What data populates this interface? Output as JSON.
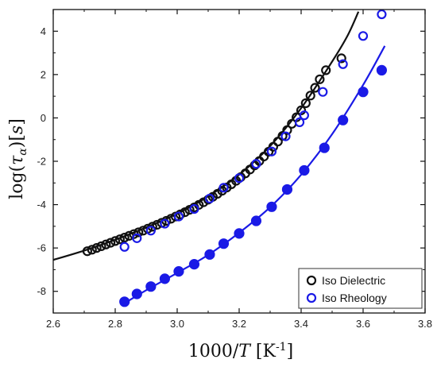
{
  "chart_data": {
    "type": "scatter",
    "xlabel": "1000/T [K⁻¹]",
    "ylabel": "log(τα)[s]",
    "xlim": [
      2.6,
      3.8
    ],
    "ylim": [
      -9,
      5
    ],
    "x_ticks": [
      "2.6",
      "2.8",
      "3.0",
      "3.2",
      "3.4",
      "3.6",
      "3.8"
    ],
    "y_ticks": [
      "-8",
      "-6",
      "-4",
      "-2",
      "0",
      "2",
      "4"
    ],
    "legend": {
      "position": "bottom-right"
    },
    "colors": {
      "black": "#111111",
      "blue": "#1a1ae6"
    },
    "series": [
      {
        "name": "Iso Dielectric",
        "marker": "open-circle",
        "color": "#111111",
        "points": [
          [
            2.71,
            -6.15
          ],
          [
            2.725,
            -6.08
          ],
          [
            2.74,
            -6.0
          ],
          [
            2.755,
            -5.92
          ],
          [
            2.77,
            -5.84
          ],
          [
            2.785,
            -5.76
          ],
          [
            2.8,
            -5.68
          ],
          [
            2.815,
            -5.6
          ],
          [
            2.83,
            -5.52
          ],
          [
            2.845,
            -5.44
          ],
          [
            2.86,
            -5.36
          ],
          [
            2.875,
            -5.28
          ],
          [
            2.89,
            -5.2
          ],
          [
            2.905,
            -5.11
          ],
          [
            2.92,
            -5.02
          ],
          [
            2.935,
            -4.93
          ],
          [
            2.95,
            -4.84
          ],
          [
            2.965,
            -4.75
          ],
          [
            2.98,
            -4.65
          ],
          [
            2.995,
            -4.55
          ],
          [
            3.01,
            -4.45
          ],
          [
            3.025,
            -4.35
          ],
          [
            3.04,
            -4.24
          ],
          [
            3.055,
            -4.13
          ],
          [
            3.07,
            -4.01
          ],
          [
            3.085,
            -3.89
          ],
          [
            3.1,
            -3.77
          ],
          [
            3.115,
            -3.64
          ],
          [
            3.13,
            -3.5
          ],
          [
            3.145,
            -3.36
          ],
          [
            3.16,
            -3.21
          ],
          [
            3.175,
            -3.06
          ],
          [
            3.19,
            -2.9
          ],
          [
            3.205,
            -2.73
          ],
          [
            3.22,
            -2.56
          ],
          [
            3.235,
            -2.38
          ],
          [
            3.25,
            -2.19
          ],
          [
            3.265,
            -1.99
          ],
          [
            3.28,
            -1.78
          ],
          [
            3.295,
            -1.56
          ],
          [
            3.31,
            -1.33
          ],
          [
            3.325,
            -1.09
          ],
          [
            3.34,
            -0.83
          ],
          [
            3.355,
            -0.56
          ],
          [
            3.37,
            -0.27
          ],
          [
            3.385,
            0.03
          ],
          [
            3.4,
            0.35
          ],
          [
            3.415,
            0.68
          ],
          [
            3.43,
            1.03
          ],
          [
            3.445,
            1.39
          ],
          [
            3.46,
            1.78
          ],
          [
            3.48,
            2.2
          ],
          [
            3.53,
            2.75
          ]
        ]
      },
      {
        "name": "Iso Rheology",
        "marker": "open-circle",
        "color": "#1a1ae6",
        "points": [
          [
            2.83,
            -5.95
          ],
          [
            2.87,
            -5.55
          ],
          [
            2.915,
            -5.2
          ],
          [
            2.96,
            -4.88
          ],
          [
            3.005,
            -4.55
          ],
          [
            3.055,
            -4.2
          ],
          [
            3.105,
            -3.72
          ],
          [
            3.15,
            -3.22
          ],
          [
            3.2,
            -2.78
          ],
          [
            3.255,
            -2.12
          ],
          [
            3.305,
            -1.55
          ],
          [
            3.35,
            -0.85
          ],
          [
            3.395,
            -0.2
          ],
          [
            3.41,
            0.12
          ],
          [
            3.47,
            1.2
          ],
          [
            3.535,
            2.48
          ],
          [
            3.6,
            3.78
          ],
          [
            3.66,
            4.78
          ]
        ]
      },
      {
        "name": "",
        "marker": "filled-circle",
        "color": "#1a1ae6",
        "points": [
          [
            2.83,
            -8.48
          ],
          [
            2.87,
            -8.12
          ],
          [
            2.915,
            -7.78
          ],
          [
            2.96,
            -7.42
          ],
          [
            3.005,
            -7.08
          ],
          [
            3.055,
            -6.75
          ],
          [
            3.105,
            -6.3
          ],
          [
            3.15,
            -5.8
          ],
          [
            3.2,
            -5.33
          ],
          [
            3.255,
            -4.75
          ],
          [
            3.305,
            -4.1
          ],
          [
            3.355,
            -3.3
          ],
          [
            3.41,
            -2.42
          ],
          [
            3.475,
            -1.38
          ],
          [
            3.535,
            -0.1
          ],
          [
            3.6,
            1.2
          ],
          [
            3.66,
            2.2
          ]
        ]
      }
    ],
    "curves": [
      {
        "color": "#111111",
        "points": [
          [
            2.6,
            -6.55
          ],
          [
            2.7,
            -6.12
          ],
          [
            2.8,
            -5.62
          ],
          [
            2.9,
            -5.05
          ],
          [
            3.0,
            -4.42
          ],
          [
            3.1,
            -3.62
          ],
          [
            3.2,
            -2.62
          ],
          [
            3.3,
            -1.3
          ],
          [
            3.4,
            0.45
          ],
          [
            3.5,
            2.6
          ],
          [
            3.55,
            3.8
          ],
          [
            3.585,
            4.9
          ]
        ]
      },
      {
        "color": "#1a1ae6",
        "points": [
          [
            2.83,
            -8.55
          ],
          [
            2.9,
            -7.95
          ],
          [
            3.0,
            -7.15
          ],
          [
            3.1,
            -6.32
          ],
          [
            3.2,
            -5.3
          ],
          [
            3.3,
            -4.12
          ],
          [
            3.4,
            -2.62
          ],
          [
            3.5,
            -0.75
          ],
          [
            3.6,
            1.52
          ],
          [
            3.67,
            3.32
          ]
        ]
      }
    ]
  }
}
